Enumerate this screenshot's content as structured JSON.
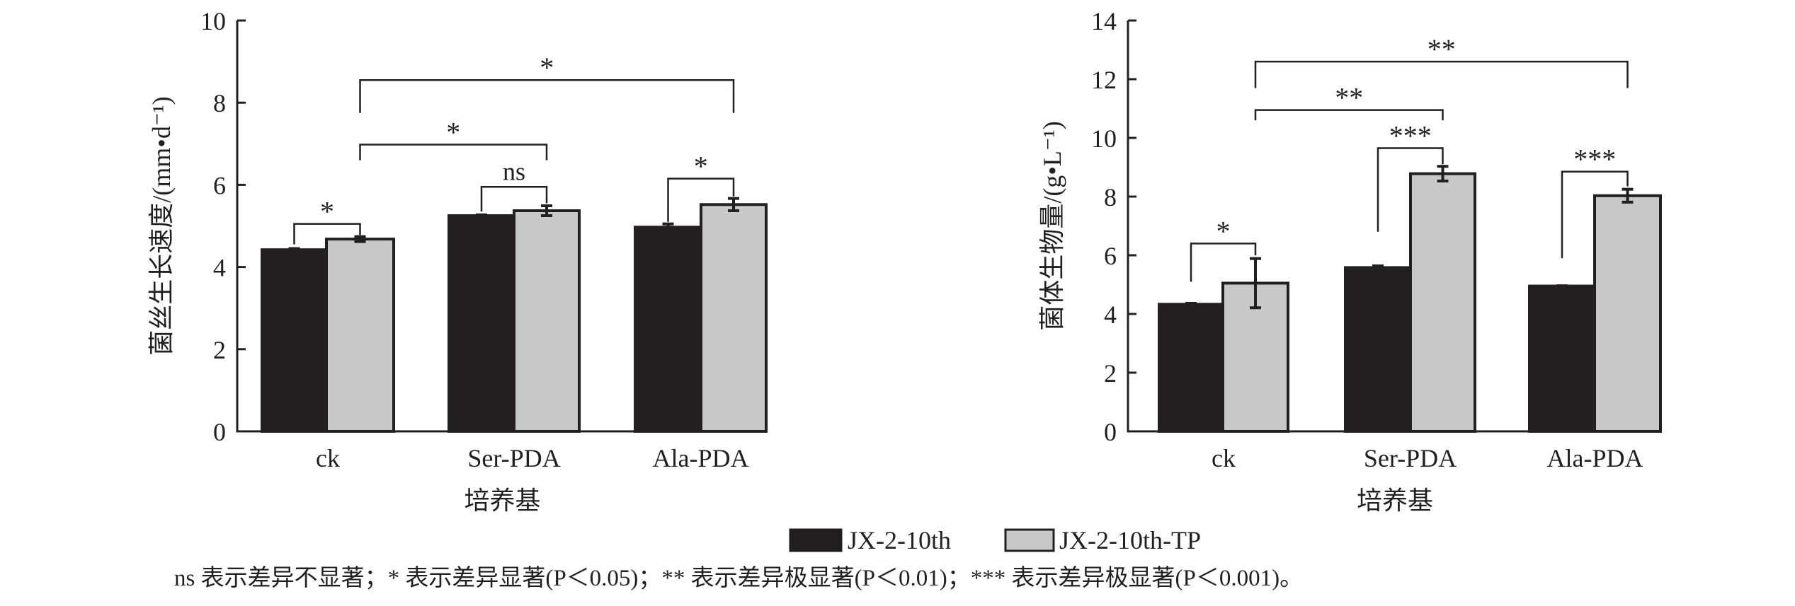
{
  "colors": {
    "dark": "#231f20",
    "light": "#c8c9cb",
    "axis": "#231f20"
  },
  "legend": [
    {
      "label": "JX-2-10th"
    },
    {
      "label": "JX-2-10th-TP"
    }
  ],
  "footnote": "ns 表示差异不显著；* 表示差异显著(P＜0.05)；** 表示差异极显著(P＜0.01)；*** 表示差异极显著(P＜0.001)。",
  "chart_data": [
    {
      "type": "bar",
      "title": "",
      "xlabel": "培养基",
      "ylabel": "菌丝生长速度/(mm•d⁻¹)",
      "ylim": [
        0,
        10
      ],
      "yticks": [
        "0",
        "2",
        "4",
        "6",
        "8",
        "10"
      ],
      "categories": [
        "ck",
        "Ser-PDA",
        "Ala-PDA"
      ],
      "series": [
        {
          "name": "JX-2-10th",
          "values": [
            4.42,
            5.25,
            4.97
          ],
          "errors": [
            0.03,
            0.02,
            0.08
          ]
        },
        {
          "name": "JX-2-10th-TP",
          "values": [
            4.68,
            5.37,
            5.52
          ],
          "errors": [
            0.06,
            0.12,
            0.15
          ]
        }
      ],
      "annotations": [
        {
          "label": "*",
          "from": [
            0,
            0
          ],
          "to": [
            0,
            1
          ],
          "y": 5.05,
          "leg_from": 4.55,
          "leg_to": 4.78
        },
        {
          "label": "ns",
          "from": [
            1,
            0
          ],
          "to": [
            1,
            1
          ],
          "y": 5.95,
          "leg_from": 5.35,
          "leg_to": 5.55
        },
        {
          "label": "*",
          "from": [
            2,
            0
          ],
          "to": [
            2,
            1
          ],
          "y": 6.15,
          "leg_from": 5.1,
          "leg_to": 5.72
        },
        {
          "label": "*",
          "from": [
            0,
            1
          ],
          "to": [
            1,
            1
          ],
          "y": 6.98,
          "leg_from": 6.6,
          "leg_to": 6.6
        },
        {
          "label": "*",
          "from": [
            0,
            1
          ],
          "to": [
            2,
            1
          ],
          "y": 8.55,
          "leg_from": 7.75,
          "leg_to": 7.75
        }
      ]
    },
    {
      "type": "bar",
      "title": "",
      "xlabel": "培养基",
      "ylabel": "菌体生物量/(g•L⁻¹)",
      "ylim": [
        0,
        14
      ],
      "yticks": [
        "0",
        "2",
        "4",
        "6",
        "8",
        "10",
        "12",
        "14"
      ],
      "categories": [
        "ck",
        "Ser-PDA",
        "Ala-PDA"
      ],
      "series": [
        {
          "name": "JX-2-10th",
          "values": [
            4.33,
            5.58,
            4.95
          ],
          "errors": [
            0.03,
            0.06,
            0.01
          ]
        },
        {
          "name": "JX-2-10th-TP",
          "values": [
            5.05,
            8.78,
            8.03
          ],
          "errors": [
            0.84,
            0.25,
            0.22
          ]
        }
      ],
      "annotations": [
        {
          "label": "*",
          "from": [
            0,
            0
          ],
          "to": [
            0,
            1
          ],
          "y": 6.4,
          "leg_from": 5.1,
          "leg_to": 6.0
        },
        {
          "label": "***",
          "from": [
            1,
            0
          ],
          "to": [
            1,
            1
          ],
          "y": 9.65,
          "leg_from": 6.8,
          "leg_to": 9.1
        },
        {
          "label": "***",
          "from": [
            2,
            0
          ],
          "to": [
            2,
            1
          ],
          "y": 8.85,
          "leg_from": 5.9,
          "leg_to": 8.35
        },
        {
          "label": "**",
          "from": [
            0,
            1
          ],
          "to": [
            1,
            1
          ],
          "y": 10.95,
          "leg_from": 10.6,
          "leg_to": 10.6
        },
        {
          "label": "**",
          "from": [
            0,
            1
          ],
          "to": [
            2,
            1
          ],
          "y": 12.6,
          "leg_from": 11.7,
          "leg_to": 11.7
        }
      ]
    }
  ]
}
